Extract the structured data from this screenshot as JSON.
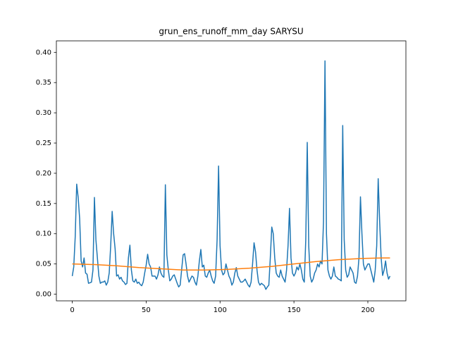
{
  "chart_data": {
    "type": "line",
    "title": "grun_ens_runoff_mm_day SARYSU",
    "x": [
      0,
      1,
      2,
      3,
      4,
      5,
      6,
      7,
      8,
      9,
      10,
      11,
      12,
      13,
      14,
      15,
      16,
      17,
      18,
      19,
      20,
      21,
      22,
      23,
      24,
      25,
      26,
      27,
      28,
      29,
      30,
      31,
      32,
      33,
      34,
      35,
      36,
      37,
      38,
      39,
      40,
      41,
      42,
      43,
      44,
      45,
      46,
      47,
      48,
      49,
      50,
      51,
      52,
      53,
      54,
      55,
      56,
      57,
      58,
      59,
      60,
      61,
      62,
      63,
      64,
      65,
      66,
      67,
      68,
      69,
      70,
      71,
      72,
      73,
      74,
      75,
      76,
      77,
      78,
      79,
      80,
      81,
      82,
      83,
      84,
      85,
      86,
      87,
      88,
      89,
      90,
      91,
      92,
      93,
      94,
      95,
      96,
      97,
      98,
      99,
      100,
      101,
      102,
      103,
      104,
      105,
      106,
      107,
      108,
      109,
      110,
      111,
      112,
      113,
      114,
      115,
      116,
      117,
      118,
      119,
      120,
      121,
      122,
      123,
      124,
      125,
      126,
      127,
      128,
      129,
      130,
      131,
      132,
      133,
      134,
      135,
      136,
      137,
      138,
      139,
      140,
      141,
      142,
      143,
      144,
      145,
      146,
      147,
      148,
      149,
      150,
      151,
      152,
      153,
      154,
      155,
      156,
      157,
      158,
      159,
      160,
      161,
      162,
      163,
      164,
      165,
      166,
      167,
      168,
      169,
      170,
      171,
      172,
      173,
      174,
      175,
      176,
      177,
      178,
      179,
      180,
      181,
      182,
      183,
      184,
      185,
      186,
      187,
      188,
      189,
      190,
      191,
      192,
      193,
      194,
      195,
      196,
      197,
      198,
      199,
      200,
      201,
      202,
      203,
      204,
      205,
      206,
      207,
      208,
      209,
      210,
      211,
      212,
      213,
      214,
      215
    ],
    "series": [
      {
        "color": "#1f77b4",
        "values": [
          0.03,
          0.045,
          0.095,
          0.182,
          0.16,
          0.125,
          0.055,
          0.045,
          0.06,
          0.035,
          0.033,
          0.018,
          0.019,
          0.02,
          0.04,
          0.16,
          0.09,
          0.06,
          0.03,
          0.018,
          0.02,
          0.02,
          0.022,
          0.015,
          0.02,
          0.035,
          0.08,
          0.137,
          0.1,
          0.075,
          0.03,
          0.032,
          0.025,
          0.028,
          0.022,
          0.02,
          0.016,
          0.018,
          0.06,
          0.081,
          0.04,
          0.022,
          0.02,
          0.025,
          0.018,
          0.02,
          0.016,
          0.014,
          0.02,
          0.035,
          0.048,
          0.066,
          0.05,
          0.045,
          0.03,
          0.03,
          0.03,
          0.025,
          0.032,
          0.045,
          0.035,
          0.03,
          0.028,
          0.181,
          0.065,
          0.04,
          0.022,
          0.025,
          0.03,
          0.032,
          0.025,
          0.018,
          0.012,
          0.015,
          0.04,
          0.065,
          0.067,
          0.05,
          0.03,
          0.02,
          0.025,
          0.03,
          0.028,
          0.02,
          0.015,
          0.03,
          0.055,
          0.074,
          0.045,
          0.048,
          0.03,
          0.028,
          0.035,
          0.04,
          0.03,
          0.022,
          0.018,
          0.03,
          0.09,
          0.212,
          0.08,
          0.04,
          0.032,
          0.035,
          0.05,
          0.04,
          0.03,
          0.025,
          0.015,
          0.02,
          0.035,
          0.044,
          0.03,
          0.025,
          0.02,
          0.02,
          0.022,
          0.025,
          0.02,
          0.015,
          0.012,
          0.02,
          0.05,
          0.085,
          0.07,
          0.04,
          0.02,
          0.015,
          0.018,
          0.016,
          0.014,
          0.008,
          0.012,
          0.015,
          0.06,
          0.111,
          0.1,
          0.06,
          0.035,
          0.03,
          0.028,
          0.04,
          0.03,
          0.025,
          0.02,
          0.04,
          0.08,
          0.142,
          0.06,
          0.035,
          0.03,
          0.035,
          0.045,
          0.04,
          0.05,
          0.04,
          0.025,
          0.02,
          0.09,
          0.251,
          0.08,
          0.03,
          0.02,
          0.025,
          0.035,
          0.04,
          0.05,
          0.045,
          0.055,
          0.05,
          0.12,
          0.386,
          0.1,
          0.04,
          0.03,
          0.025,
          0.03,
          0.045,
          0.03,
          0.028,
          0.025,
          0.024,
          0.022,
          0.279,
          0.09,
          0.04,
          0.028,
          0.032,
          0.045,
          0.04,
          0.035,
          0.02,
          0.018,
          0.03,
          0.06,
          0.161,
          0.1,
          0.05,
          0.04,
          0.045,
          0.05,
          0.05,
          0.04,
          0.03,
          0.02,
          0.04,
          0.08,
          0.191,
          0.12,
          0.06,
          0.031,
          0.04,
          0.055,
          0.035,
          0.025,
          0.03
        ]
      },
      {
        "color": "#ff7f0e",
        "x": [
          0,
          15,
          30,
          45,
          60,
          75,
          90,
          105,
          120,
          135,
          150,
          165,
          180,
          195,
          210,
          215
        ],
        "values": [
          0.05,
          0.049,
          0.047,
          0.044,
          0.042,
          0.04,
          0.04,
          0.041,
          0.043,
          0.046,
          0.05,
          0.054,
          0.057,
          0.059,
          0.06,
          0.06
        ]
      }
    ],
    "xlim": [
      -10.75,
      225.75
    ],
    "ylim": [
      -0.011,
      0.419
    ],
    "xticks": [
      0,
      50,
      100,
      150,
      200
    ],
    "yticks": [
      {
        "value": 0,
        "label": "0.00"
      },
      0.05,
      {
        "value": 0.1,
        "label": "0.10"
      },
      0.15,
      {
        "value": 0.2,
        "label": "0.20"
      },
      0.25,
      {
        "value": 0.3,
        "label": "0.30"
      },
      0.35,
      {
        "value": 0.4,
        "label": "0.40"
      }
    ]
  }
}
